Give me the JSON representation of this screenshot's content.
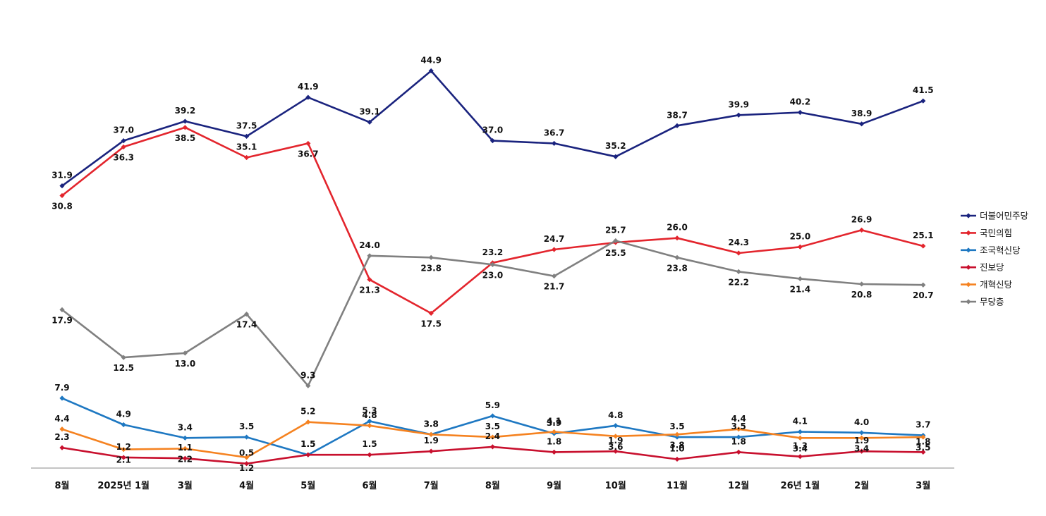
{
  "chart_data": {
    "type": "line",
    "title": "",
    "xlabel": "",
    "ylabel": "",
    "ylim": [
      0,
      50
    ],
    "grid": false,
    "legend_position": "right",
    "categories": [
      "8월",
      "2025년 1월",
      "3월",
      "4월",
      "5월",
      "6월",
      "7월",
      "8월",
      "9월",
      "10월",
      "11월",
      "12월",
      "26년 1월",
      "2월",
      "3월"
    ],
    "series": [
      {
        "name": "더불어민주당",
        "color": "#1a237e",
        "values": [
          31.9,
          37.0,
          39.2,
          37.5,
          41.9,
          39.1,
          44.9,
          37.0,
          36.7,
          35.2,
          38.7,
          39.9,
          40.2,
          38.9,
          41.5
        ]
      },
      {
        "name": "국민의힘",
        "color": "#e3252d",
        "values": [
          30.8,
          36.3,
          38.5,
          35.1,
          36.7,
          21.3,
          17.5,
          23.2,
          24.7,
          25.5,
          26.0,
          24.3,
          25.0,
          26.9,
          25.1
        ]
      },
      {
        "name": "조국혁신당",
        "color": "#1e78c2",
        "values": [
          7.9,
          4.9,
          3.4,
          3.5,
          1.5,
          5.3,
          3.8,
          5.9,
          3.9,
          4.8,
          3.5,
          3.5,
          4.1,
          4.0,
          3.7
        ]
      },
      {
        "name": "진보당",
        "color": "#c8102e",
        "values": [
          2.3,
          1.2,
          1.1,
          0.5,
          1.5,
          1.5,
          1.9,
          2.4,
          1.8,
          1.9,
          1.0,
          1.8,
          1.3,
          1.9,
          1.8
        ]
      },
      {
        "name": "개혁신당",
        "color": "#f58220",
        "values": [
          4.4,
          2.1,
          2.2,
          1.2,
          5.2,
          4.8,
          3.8,
          3.5,
          4.1,
          3.6,
          3.8,
          4.4,
          3.4,
          3.4,
          3.5
        ]
      },
      {
        "name": "무당층",
        "color": "#808080",
        "values": [
          17.9,
          12.5,
          13.0,
          17.4,
          9.3,
          24.0,
          23.8,
          23.0,
          21.7,
          25.7,
          23.8,
          22.2,
          21.4,
          20.8,
          20.7
        ]
      }
    ]
  }
}
